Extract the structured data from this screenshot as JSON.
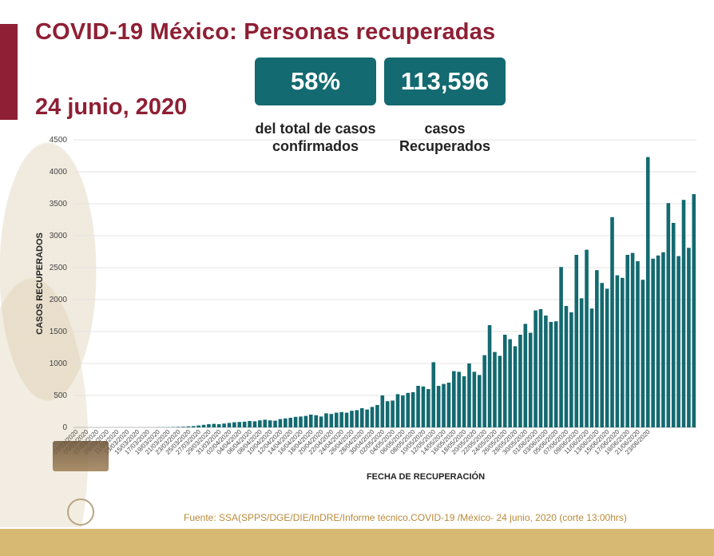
{
  "header": {
    "title": "COVID-19 México: Personas recuperadas",
    "date": "24 junio, 2020"
  },
  "stats": [
    {
      "value": "58%",
      "caption_line1": "del total de casos",
      "caption_line2": "confirmados"
    },
    {
      "value": "113,596",
      "caption_line1": "casos",
      "caption_line2": "Recuperados"
    }
  ],
  "source": "Fuente: SSA(SPPS/DGE/DIE/InDRE/Informe técnico.COVID-19 /México- 24 junio, 2020 (corte 13:00hrs)",
  "colors": {
    "bar": "#136a70",
    "title": "#8f1f34",
    "box": "#136a70",
    "source": "#b88a3a",
    "band": "#d7b974"
  },
  "chart_data": {
    "type": "bar",
    "title": "",
    "xlabel": "FECHA DE RECUPERACIÓN",
    "ylabel": "CASOS RECUPERADOS",
    "ylim": [
      0,
      4500
    ],
    "yticks": [
      0,
      500,
      1000,
      1500,
      2000,
      2500,
      3000,
      3500,
      4000,
      4500
    ],
    "grid": "horizontal",
    "tick_labels": [
      "03/03/2020",
      "05/03/2020",
      "07/03/2020",
      "09/03/2020",
      "11/03/2020",
      "13/03/2020",
      "15/03/2020",
      "17/03/2020",
      "19/03/2020",
      "21/03/2020",
      "23/03/2020",
      "25/03/2020",
      "27/03/2020",
      "29/03/2020",
      "31/03/2020",
      "02/04/2020",
      "04/04/2020",
      "06/04/2020",
      "08/04/2020",
      "10/04/2020",
      "12/04/2020",
      "14/04/2020",
      "16/04/2020",
      "18/04/2020",
      "20/04/2020",
      "22/04/2020",
      "24/04/2020",
      "26/04/2020",
      "28/04/2020",
      "30/04/2020",
      "02/05/2020",
      "04/05/2020",
      "06/05/2020",
      "08/05/2020",
      "10/05/2020",
      "12/05/2020",
      "14/05/2020",
      "16/05/2020",
      "18/05/2020",
      "20/05/2020",
      "22/05/2020",
      "24/05/2020",
      "26/05/2020",
      "28/05/2020",
      "30/05/2020",
      "01/06/2020",
      "03/06/2020",
      "05/06/2020",
      "07/06/2020",
      "09/06/2020",
      "11/06/2020",
      "13/06/2020",
      "15/06/2020",
      "17/06/2020",
      "19/06/2020",
      "21/06/2020",
      "23/06/2020"
    ],
    "values": [
      0,
      0,
      0,
      0,
      0,
      0,
      0,
      0,
      0,
      0,
      0,
      0,
      0,
      0,
      0,
      0,
      2,
      2,
      3,
      5,
      8,
      10,
      15,
      20,
      30,
      40,
      50,
      55,
      50,
      60,
      70,
      80,
      85,
      90,
      100,
      95,
      110,
      120,
      110,
      105,
      130,
      140,
      150,
      165,
      170,
      180,
      200,
      190,
      170,
      220,
      210,
      230,
      240,
      230,
      260,
      270,
      300,
      280,
      320,
      350,
      500,
      410,
      420,
      520,
      500,
      540,
      550,
      650,
      640,
      600,
      1020,
      650,
      680,
      700,
      880,
      870,
      800,
      1000,
      870,
      820,
      1130,
      1600,
      1180,
      1120,
      1450,
      1380,
      1270,
      1450,
      1620,
      1480,
      1830,
      1850,
      1750,
      1650,
      1660,
      2510,
      1900,
      1800,
      2700,
      2020,
      2780,
      1860,
      2460,
      2260,
      2170,
      3290,
      2380,
      2340,
      2700,
      2730,
      2600,
      2310,
      4230,
      2640,
      2690,
      2740,
      3510,
      3200,
      2680,
      3560,
      2810,
      3650
    ]
  }
}
